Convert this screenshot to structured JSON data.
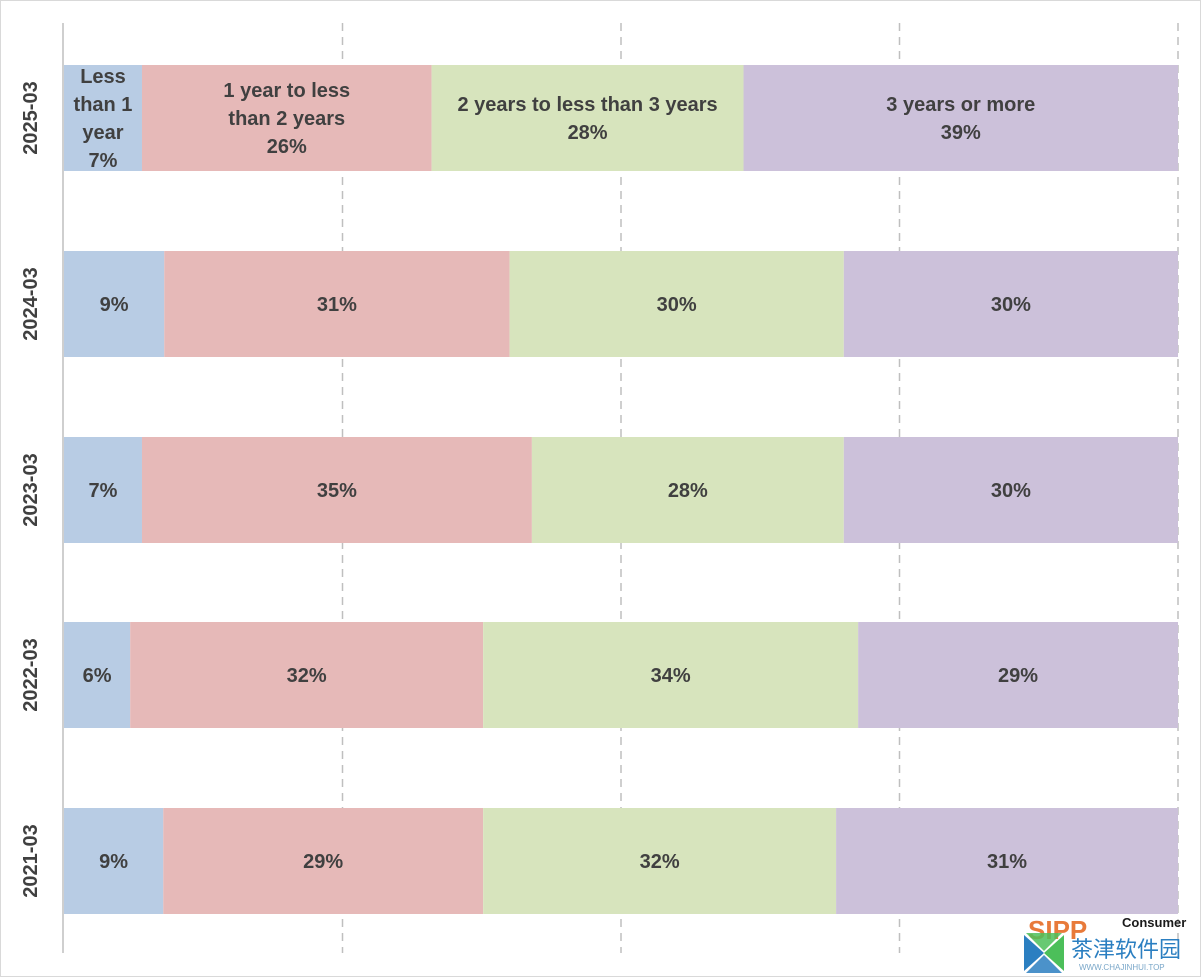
{
  "chart_data": {
    "type": "bar",
    "orientation": "horizontal",
    "stacked": true,
    "percent_stacked": true,
    "title": "",
    "xlabel": "",
    "ylabel": "",
    "xlim": [
      0,
      100
    ],
    "grid": true,
    "legend": "none",
    "categories": [
      "2025-03",
      "2024-03",
      "2023-03",
      "2022-03",
      "2021-03"
    ],
    "series": [
      {
        "name": "Less than 1 year",
        "color": "#b8cce4",
        "values": [
          7,
          9,
          7,
          6,
          9
        ],
        "labels": [
          "7%",
          "9%",
          "7%",
          "6%",
          "9%"
        ]
      },
      {
        "name": "1 year to less than 2 years",
        "color": "#e6b9b8",
        "values": [
          26,
          31,
          35,
          32,
          29
        ],
        "labels": [
          "26%",
          "31%",
          "35%",
          "32%",
          "29%"
        ]
      },
      {
        "name": "2 years to less than 3 years",
        "color": "#d7e4bd",
        "values": [
          28,
          30,
          28,
          34,
          32
        ],
        "labels": [
          "28%",
          "30%",
          "28%",
          "34%",
          "32%"
        ]
      },
      {
        "name": "3 years or more",
        "color": "#ccc1da",
        "values": [
          39,
          30,
          30,
          29,
          31
        ],
        "labels": [
          "39%",
          "30%",
          "30%",
          "29%",
          "31%"
        ]
      }
    ],
    "first_row_label_lines": [
      [
        "Less",
        "than 1",
        "year",
        "7%"
      ],
      [
        "1 year to less",
        "than 2 years",
        "26%"
      ],
      [
        "2 years to less than 3 years",
        "28%"
      ],
      [
        "3 years or more",
        "39%"
      ]
    ]
  },
  "watermark": {
    "brand_fragment": "SIPP",
    "brand_word": "Consumer",
    "cn_text": "茶津软件园",
    "url": "WWW.CHAJINHUI.TOP",
    "brand_color": "#e87a3a",
    "logo_colors": [
      "#2b7fc1",
      "#4cbf5a"
    ]
  }
}
